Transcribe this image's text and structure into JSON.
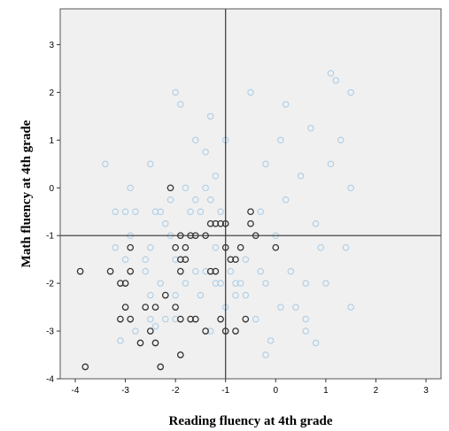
{
  "chart_data": {
    "type": "scatter",
    "xlabel": "Reading fluency at 4th grade",
    "ylabel": "Math fluency at 4th grade",
    "xlim": [
      -4.3,
      3.3
    ],
    "ylim": [
      -4,
      3.75
    ],
    "x_ticks": [
      -4,
      -3,
      -2,
      -1,
      0,
      1,
      2,
      3
    ],
    "y_ticks": [
      -4,
      -3,
      -2,
      -1,
      0,
      1,
      2,
      3
    ],
    "reference_lines": {
      "x": -1,
      "y": -1
    },
    "grid": false,
    "background": "#f0f0f0",
    "colors": {
      "main": "#a8cbe5",
      "highlight": "#333333"
    },
    "series": [
      {
        "marker": "open-circle",
        "color": "#a8cbe5",
        "points": [
          [
            -3.4,
            0.5
          ],
          [
            -3.2,
            -0.5
          ],
          [
            -3.0,
            -0.5
          ],
          [
            -2.9,
            0.0
          ],
          [
            -2.8,
            -0.5
          ],
          [
            -2.5,
            0.5
          ],
          [
            -2.5,
            -1.25
          ],
          [
            -2.4,
            -0.5
          ],
          [
            -2.3,
            -0.5
          ],
          [
            -2.2,
            -0.75
          ],
          [
            -2.1,
            -0.25
          ],
          [
            -2.1,
            -1.0
          ],
          [
            -1.8,
            0.0
          ],
          [
            -1.7,
            -0.5
          ],
          [
            -1.6,
            -0.25
          ],
          [
            -1.6,
            1.0
          ],
          [
            -1.5,
            -0.5
          ],
          [
            -1.4,
            0.75
          ],
          [
            -1.3,
            -0.25
          ],
          [
            -1.2,
            -1.25
          ],
          [
            -1.2,
            0.25
          ],
          [
            -1.1,
            -0.5
          ],
          [
            -1.0,
            1.0
          ],
          [
            -0.9,
            -1.75
          ],
          [
            -3.2,
            -1.25
          ],
          [
            -3.0,
            -2.5
          ],
          [
            -2.8,
            -3.0
          ],
          [
            -2.6,
            -1.75
          ],
          [
            -2.5,
            -2.75
          ],
          [
            -2.2,
            -2.75
          ],
          [
            -2.0,
            -1.5
          ],
          [
            -1.5,
            -2.25
          ],
          [
            -1.3,
            -3.0
          ],
          [
            -1.1,
            -2.0
          ],
          [
            -1.0,
            -2.5
          ],
          [
            -0.8,
            -2.25
          ],
          [
            -3.1,
            -3.2
          ],
          [
            -3.0,
            -2.0
          ],
          [
            -2.9,
            -1.0
          ],
          [
            -2.3,
            -2.0
          ],
          [
            -2.0,
            -2.25
          ],
          [
            -1.8,
            -2.0
          ],
          [
            -3.0,
            -1.5
          ],
          [
            -2.5,
            -2.25
          ],
          [
            -1.9,
            1.75
          ],
          [
            -2.0,
            2.0
          ],
          [
            -1.4,
            0.0
          ],
          [
            -1.3,
            1.5
          ],
          [
            -0.7,
            -2.0
          ],
          [
            -0.6,
            -1.5
          ],
          [
            -0.5,
            2.0
          ],
          [
            -0.3,
            -0.5
          ],
          [
            -0.2,
            0.5
          ],
          [
            0.0,
            -1.0
          ],
          [
            0.1,
            1.0
          ],
          [
            0.2,
            1.75
          ],
          [
            0.2,
            -0.25
          ],
          [
            0.3,
            -1.75
          ],
          [
            0.4,
            -2.5
          ],
          [
            0.5,
            0.25
          ],
          [
            0.6,
            -2.0
          ],
          [
            0.7,
            1.25
          ],
          [
            0.8,
            -0.75
          ],
          [
            0.9,
            -1.25
          ],
          [
            1.0,
            -2.0
          ],
          [
            1.1,
            0.5
          ],
          [
            1.2,
            2.25
          ],
          [
            1.3,
            1.0
          ],
          [
            1.4,
            -1.25
          ],
          [
            1.5,
            0.0
          ],
          [
            1.5,
            2.0
          ],
          [
            1.5,
            -2.5
          ],
          [
            0.6,
            -3.0
          ],
          [
            0.8,
            -3.25
          ],
          [
            0.6,
            -2.75
          ],
          [
            -0.2,
            -3.5
          ],
          [
            -0.4,
            -2.75
          ],
          [
            0.1,
            -2.5
          ],
          [
            -0.1,
            -3.2
          ],
          [
            1.1,
            2.4
          ],
          [
            -2.4,
            -2.9
          ],
          [
            -2.6,
            -1.5
          ],
          [
            -2.0,
            -2.75
          ],
          [
            -1.6,
            -1.75
          ],
          [
            -1.4,
            -1.75
          ],
          [
            -1.2,
            -2.0
          ],
          [
            -0.8,
            -2.0
          ],
          [
            -0.6,
            -2.25
          ],
          [
            -0.3,
            -1.75
          ],
          [
            -0.2,
            -2.0
          ]
        ]
      },
      {
        "marker": "open-circle",
        "color": "#333333",
        "points": [
          [
            -3.8,
            -3.75
          ],
          [
            -3.9,
            -1.75
          ],
          [
            -3.3,
            -1.75
          ],
          [
            -3.1,
            -2.0
          ],
          [
            -3.0,
            -2.0
          ],
          [
            -2.9,
            -1.75
          ],
          [
            -2.9,
            -1.25
          ],
          [
            -2.9,
            -2.75
          ],
          [
            -3.1,
            -2.75
          ],
          [
            -3.0,
            -2.5
          ],
          [
            -2.7,
            -3.25
          ],
          [
            -2.6,
            -2.5
          ],
          [
            -2.5,
            -3.0
          ],
          [
            -2.4,
            -3.25
          ],
          [
            -2.4,
            -2.5
          ],
          [
            -2.3,
            -3.75
          ],
          [
            -2.2,
            -2.25
          ],
          [
            -2.1,
            0.0
          ],
          [
            -2.0,
            -1.25
          ],
          [
            -2.0,
            -2.5
          ],
          [
            -1.9,
            -1.0
          ],
          [
            -1.9,
            -1.5
          ],
          [
            -1.9,
            -1.75
          ],
          [
            -1.9,
            -2.75
          ],
          [
            -1.9,
            -3.5
          ],
          [
            -1.8,
            -1.25
          ],
          [
            -1.8,
            -1.5
          ],
          [
            -1.7,
            -1.0
          ],
          [
            -1.7,
            -2.75
          ],
          [
            -1.6,
            -2.75
          ],
          [
            -1.6,
            -1.0
          ],
          [
            -1.4,
            -1.0
          ],
          [
            -1.4,
            -3.0
          ],
          [
            -1.3,
            -0.75
          ],
          [
            -1.3,
            -1.75
          ],
          [
            -1.2,
            -0.75
          ],
          [
            -1.2,
            -1.75
          ],
          [
            -1.1,
            -0.75
          ],
          [
            -1.1,
            -2.75
          ],
          [
            -1.0,
            -0.75
          ],
          [
            -1.0,
            -3.0
          ],
          [
            -1.0,
            -1.25
          ],
          [
            -0.9,
            -1.5
          ],
          [
            -0.8,
            -1.5
          ],
          [
            -0.8,
            -3.0
          ],
          [
            -0.6,
            -2.75
          ],
          [
            -0.5,
            -0.5
          ],
          [
            -0.5,
            -0.75
          ],
          [
            -0.4,
            -1.0
          ],
          [
            0.0,
            -1.25
          ],
          [
            -0.7,
            -1.25
          ]
        ]
      }
    ]
  }
}
